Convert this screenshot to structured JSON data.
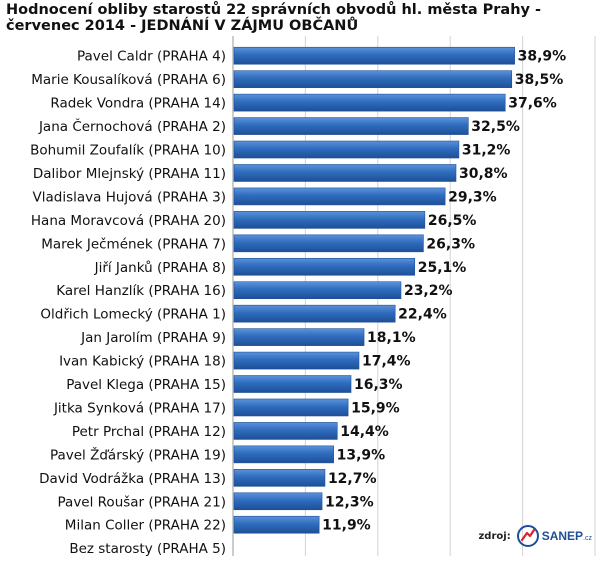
{
  "chart_data": {
    "type": "bar",
    "orientation": "horizontal",
    "title_lines": [
      "Hodnocení obliby starostů 22 správních obvodů hl. města Prahy -",
      "červenec 2014 - JEDNÁNÍ V ZÁJMU OBČANŮ"
    ],
    "categories": [
      "Pavel Caldr (PRAHA 4)",
      "Marie Kousalíková (PRAHA 6)",
      "Radek Vondra (PRAHA 14)",
      "Jana Černochová (PRAHA 2)",
      "Bohumil Zoufalík (PRAHA 10)",
      "Dalibor Mlejnský (PRAHA 11)",
      "Vladislava Hujová (PRAHA 3)",
      "Hana Moravcová (PRAHA 20)",
      "Marek Ječmének (PRAHA 7)",
      "Jiří Janků (PRAHA 8)",
      "Karel Hanzlík (PRAHA 16)",
      "Oldřich Lomecký  (PRAHA 1)",
      "Jan Jarolím (PRAHA 9)",
      "Ivan Kabický (PRAHA 18)",
      "Pavel Klega (PRAHA 15)",
      "Jitka Synková (PRAHA 17)",
      "Petr Prchal (PRAHA 12)",
      "Pavel Žďárský (PRAHA 19)",
      "David Vodrážka (PRAHA 13)",
      "Pavel Roušar (PRAHA 21)",
      "Milan Coller (PRAHA 22)",
      "Bez starosty (PRAHA 5)"
    ],
    "values": [
      38.9,
      38.5,
      37.6,
      32.5,
      31.2,
      30.8,
      29.3,
      26.5,
      26.3,
      25.1,
      23.2,
      22.4,
      18.1,
      17.4,
      16.3,
      15.9,
      14.4,
      13.9,
      12.7,
      12.3,
      11.9,
      null
    ],
    "value_labels": [
      "38,9%",
      "38,5%",
      "37,6%",
      "32,5%",
      "31,2%",
      "30,8%",
      "29,3%",
      "26,5%",
      "26,3%",
      "25,1%",
      "23,2%",
      "22,4%",
      "18,1%",
      "17,4%",
      "16,3%",
      "15,9%",
      "14,4%",
      "13,9%",
      "12,7%",
      "12,3%",
      "11,9%",
      ""
    ],
    "xlim": [
      0,
      50
    ],
    "grid": true,
    "legend": "none",
    "bar_color": "#2f6cbd",
    "bar_color_light": "#5b93da",
    "bar_color_dark": "#1e4f98",
    "grid_color": "#d3d3d3"
  },
  "source": {
    "label": "zdroj:",
    "logo_name": "SANEP",
    "logo_tld": ".cz",
    "logo_color": "#1f4f97",
    "logo_accent": "#e0202a"
  }
}
